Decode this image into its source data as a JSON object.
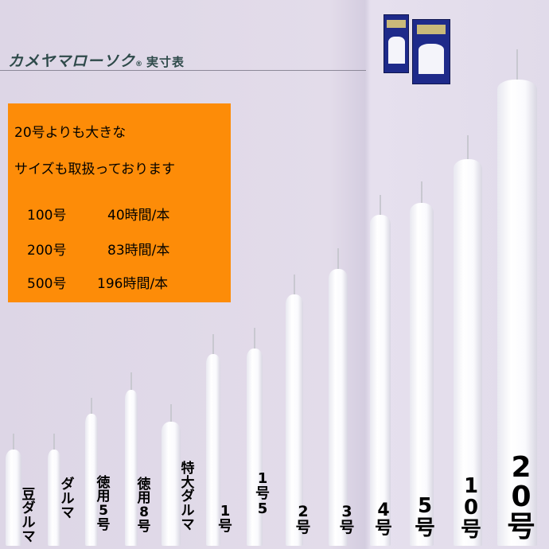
{
  "header": {
    "title": "カメヤマローソク",
    "registered": "®",
    "subtitle": "実寸表"
  },
  "notice": {
    "lines": [
      "20号よりも大きな",
      "サイズも取扱っております"
    ],
    "sizes": [
      {
        "size": "100号",
        "burn_time": "40時間/本"
      },
      {
        "size": "200号",
        "burn_time": "83時間/本"
      },
      {
        "size": "500号",
        "burn_time": "196時間/本"
      }
    ],
    "background": "#fd8c08"
  },
  "candles": [
    {
      "label": "豆ダルマ"
    },
    {
      "label": "ダルマ"
    },
    {
      "label": "徳用5号"
    },
    {
      "label": "徳用8号"
    },
    {
      "label": "特大ダルマ"
    },
    {
      "label": "1号"
    },
    {
      "label": "1号5"
    },
    {
      "label": "2号"
    },
    {
      "label": "3号"
    },
    {
      "label": "4号"
    },
    {
      "label": "5号"
    },
    {
      "label": "10号"
    },
    {
      "label": "20号"
    }
  ]
}
